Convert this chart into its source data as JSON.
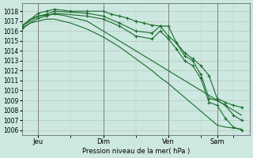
{
  "bg_color": "#cce8e0",
  "grid_color": "#b0b0b0",
  "line_color": "#1a6b2a",
  "marker_color": "#1a6b2a",
  "xlabel": "Pression niveau de la mer( hPa )",
  "ylim": [
    1005.5,
    1018.8
  ],
  "yticks": [
    1006,
    1007,
    1008,
    1009,
    1010,
    1011,
    1012,
    1013,
    1014,
    1015,
    1016,
    1017,
    1018
  ],
  "xtick_labels": [
    "Jeu",
    "Dim",
    "Ven",
    "Sam"
  ],
  "xtick_positions": [
    2,
    10,
    18,
    24
  ],
  "xlim": [
    0,
    28
  ],
  "vline_positions": [
    2,
    10,
    18,
    24
  ],
  "smooth1_x": [
    0,
    1,
    2,
    3,
    4,
    5,
    6,
    7,
    8,
    9,
    10,
    11,
    12,
    13,
    14,
    15,
    16,
    17,
    18,
    19,
    20,
    21,
    22,
    23,
    24,
    25,
    26,
    27
  ],
  "smooth1_y": [
    1016.5,
    1017.2,
    1017.5,
    1017.6,
    1017.7,
    1017.6,
    1017.4,
    1017.2,
    1017.0,
    1016.5,
    1016.0,
    1015.5,
    1015.0,
    1014.5,
    1014.0,
    1013.5,
    1013.0,
    1012.5,
    1012.0,
    1011.5,
    1011.0,
    1010.5,
    1010.0,
    1009.5,
    1009.0,
    1008.5,
    1008.0,
    1007.5
  ],
  "smooth2_x": [
    0,
    1,
    2,
    3,
    4,
    5,
    6,
    7,
    8,
    9,
    10,
    11,
    12,
    13,
    14,
    15,
    16,
    17,
    18,
    19,
    20,
    21,
    22,
    23,
    24,
    25,
    26,
    27
  ],
  "smooth2_y": [
    1016.2,
    1016.8,
    1017.0,
    1017.2,
    1017.2,
    1017.0,
    1016.8,
    1016.5,
    1016.2,
    1015.8,
    1015.4,
    1014.9,
    1014.4,
    1013.8,
    1013.2,
    1012.6,
    1012.0,
    1011.3,
    1010.7,
    1010.0,
    1009.3,
    1008.6,
    1007.9,
    1007.2,
    1006.5,
    1006.3,
    1006.2,
    1006.1
  ],
  "jagged1_x": [
    0,
    2,
    3,
    4,
    6,
    8,
    10,
    11,
    12,
    13,
    14,
    15,
    16,
    17,
    18,
    19,
    20,
    21,
    22,
    23,
    24,
    25,
    26,
    27
  ],
  "jagged1_y": [
    1016.5,
    1017.8,
    1018.0,
    1018.2,
    1018.0,
    1018.0,
    1018.0,
    1017.7,
    1017.5,
    1017.3,
    1017.0,
    1016.8,
    1016.6,
    1016.5,
    1016.5,
    1014.8,
    1013.8,
    1013.2,
    1012.5,
    1011.5,
    1009.2,
    1008.8,
    1008.5,
    1008.3
  ],
  "jagged2_x": [
    0,
    2,
    3,
    4,
    8,
    10,
    12,
    14,
    16,
    17,
    18,
    19,
    20,
    21,
    22,
    23,
    24,
    25,
    26,
    27
  ],
  "jagged2_y": [
    1016.5,
    1017.5,
    1017.7,
    1018.0,
    1017.8,
    1017.5,
    1016.8,
    1016.0,
    1015.8,
    1016.5,
    1015.5,
    1014.8,
    1013.5,
    1013.0,
    1011.6,
    1009.2,
    1009.0,
    1008.5,
    1007.5,
    1007.0
  ],
  "jagged3_x": [
    0,
    2,
    3,
    4,
    8,
    10,
    12,
    14,
    16,
    17,
    18,
    19,
    20,
    21,
    22,
    23,
    24,
    25,
    26,
    27
  ],
  "jagged3_y": [
    1016.3,
    1017.3,
    1017.5,
    1017.8,
    1017.5,
    1017.2,
    1016.5,
    1015.5,
    1015.2,
    1016.0,
    1015.2,
    1014.2,
    1013.0,
    1012.5,
    1011.2,
    1008.8,
    1008.5,
    1007.2,
    1006.3,
    1006.0
  ]
}
